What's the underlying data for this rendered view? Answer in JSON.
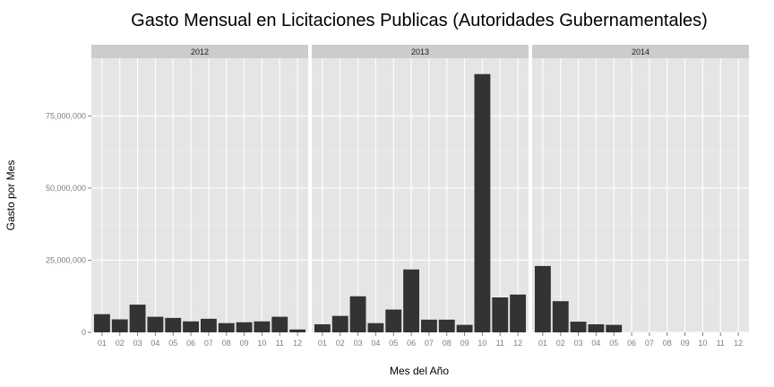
{
  "chart_data": {
    "type": "bar",
    "title": "Gasto Mensual en Licitaciones Publicas (Autoridades Gubernamentales)",
    "xlabel": "Mes del Año",
    "ylabel": "Gasto por Mes",
    "ylim": [
      0,
      95000000
    ],
    "yticks": [
      0,
      25000000,
      50000000,
      75000000
    ],
    "ytick_labels": [
      "0",
      "25,000,000",
      "50,000,000",
      "75,000,000"
    ],
    "grid": true,
    "categories": [
      "01",
      "02",
      "03",
      "04",
      "05",
      "06",
      "07",
      "08",
      "09",
      "10",
      "11",
      "12"
    ],
    "panels": [
      {
        "name": "2012",
        "values": [
          6300000,
          4500000,
          9600000,
          5400000,
          5000000,
          3800000,
          4700000,
          3200000,
          3500000,
          3800000,
          5400000,
          1000000
        ]
      },
      {
        "name": "2013",
        "values": [
          2800000,
          5700000,
          12500000,
          3200000,
          7900000,
          21800000,
          4400000,
          4400000,
          2600000,
          89500000,
          12100000,
          13100000
        ]
      },
      {
        "name": "2014",
        "values": [
          23000000,
          10800000,
          3700000,
          2800000,
          2600000,
          null,
          null,
          null,
          null,
          null,
          null,
          null
        ]
      }
    ]
  }
}
